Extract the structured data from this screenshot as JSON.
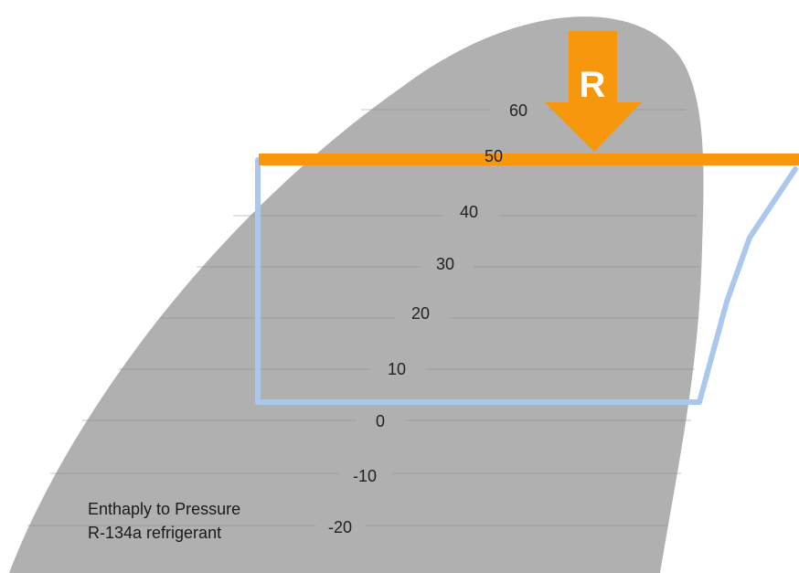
{
  "diagram": {
    "caption_line1": "Enthaply to Pressure",
    "caption_line2": "R-134a refrigerant",
    "marker_letter": "R",
    "isotherm_labels": [
      "60",
      "50",
      "40",
      "30",
      "20",
      "10",
      "0",
      "-10",
      "-20"
    ],
    "colors": {
      "dome_fill": "#b0b0b0",
      "cycle_line": "#a9c8ec",
      "highlight": "#f7980c",
      "isotherm_line": "#8a8a8a"
    }
  }
}
